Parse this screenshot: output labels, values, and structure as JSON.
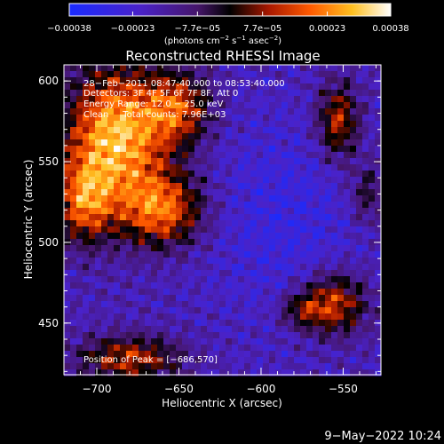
{
  "chart_data": {
    "type": "heatmap",
    "title": "Reconstructed RHESSI Image",
    "xlabel": "Heliocentric X (arcsec)",
    "ylabel": "Heliocentric Y (arcsec)",
    "xlim": [
      -720,
      -527
    ],
    "ylim": [
      418,
      610
    ],
    "x_ticks": [
      -700,
      -650,
      -600,
      -550
    ],
    "x_tick_labels": [
      "−700",
      "−650",
      "−600",
      "−550"
    ],
    "y_ticks": [
      450,
      500,
      550,
      600
    ],
    "y_tick_labels": [
      "450",
      "500",
      "550",
      "600"
    ],
    "colorbar": {
      "range": [
        -0.00038,
        0.00038
      ],
      "ticks": [
        -0.00038,
        -0.00023,
        -7.7e-05,
        7.7e-05,
        0.00023,
        0.00038
      ],
      "tick_labels": [
        "−0.00038",
        "−0.00023",
        "−7.7e−05",
        "7.7e−05",
        "0.00023",
        "0.00038"
      ],
      "unit_label_parts": [
        "(photons cm",
        "−2",
        " s",
        "−1",
        " asec",
        "−2",
        ")"
      ]
    },
    "annotations": [
      "28−Feb−2011 08:47:40.000 to 08:53:40.000",
      "Detectors: 3F 4F 5F 6F 7F 8F, Att 0",
      "Energy Range: 12.0 − 25.0 keV",
      "Clean     Total counts: 7.96E+03"
    ],
    "peak_label": "Position of Peak = [−686,570]",
    "peak": [
      -686,
      570
    ],
    "sources": [
      {
        "x": -688,
        "y": 566,
        "sx": 22,
        "sy": 30,
        "amp": 1.15
      },
      {
        "x": -660,
        "y": 520,
        "sx": 18,
        "sy": 16,
        "amp": 0.85
      },
      {
        "x": -708,
        "y": 525,
        "sx": 12,
        "sy": 18,
        "amp": 0.75
      },
      {
        "x": -650,
        "y": 583,
        "sx": 14,
        "sy": 16,
        "amp": 0.7
      },
      {
        "x": -553,
        "y": 575,
        "sx": 9,
        "sy": 17,
        "amp": 0.72
      },
      {
        "x": -555,
        "y": 462,
        "sx": 14,
        "sy": 14,
        "amp": 0.75
      },
      {
        "x": -575,
        "y": 458,
        "sx": 10,
        "sy": 8,
        "amp": 0.45
      },
      {
        "x": -680,
        "y": 428,
        "sx": 22,
        "sy": 10,
        "amp": 0.7
      },
      {
        "x": -535,
        "y": 530,
        "sx": 8,
        "sy": 14,
        "amp": 0.4
      }
    ],
    "background_level": 0.26
  },
  "footer": {
    "timestamp": "9−May−2022 10:24"
  }
}
